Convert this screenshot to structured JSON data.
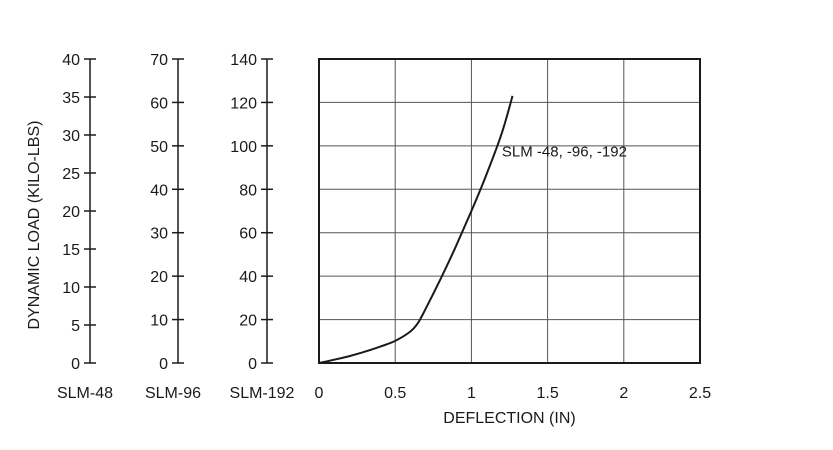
{
  "chart_data": {
    "type": "line",
    "xlabel": "DEFLECTION (IN)",
    "ylabel": "DYNAMIC LOAD (KILO-LBS)",
    "xlim": [
      0,
      2.5
    ],
    "xticks": [
      0,
      0.5,
      1,
      1.5,
      2,
      2.5
    ],
    "x_tick_labels": [
      "0",
      "0.5",
      "1",
      "1.5",
      "2",
      "2.5"
    ],
    "grid": true,
    "y_axes": [
      {
        "name": "SLM-48",
        "ylim": [
          0,
          40
        ],
        "ticks": [
          0,
          5,
          10,
          15,
          20,
          25,
          30,
          35,
          40
        ]
      },
      {
        "name": "SLM-96",
        "ylim": [
          0,
          70
        ],
        "ticks": [
          0,
          10,
          20,
          30,
          40,
          50,
          60,
          70
        ]
      },
      {
        "name": "SLM-192",
        "ylim": [
          0,
          140
        ],
        "ticks": [
          0,
          20,
          40,
          60,
          80,
          100,
          120,
          140
        ]
      }
    ],
    "series": [
      {
        "name": "SLM -48, -96, -192",
        "axis": "SLM-192",
        "x": [
          0,
          0.1,
          0.2,
          0.3,
          0.4,
          0.5,
          0.6,
          0.65,
          0.7,
          0.8,
          0.9,
          1.0,
          1.1,
          1.2,
          1.27
        ],
        "y": [
          0,
          1.5,
          3.2,
          5.2,
          7.5,
          10.2,
          14.5,
          18.5,
          25,
          39,
          54,
          70,
          87,
          106,
          123
        ]
      }
    ],
    "annotations": [
      {
        "text": "SLM -48, -96, -192",
        "x": 1.2,
        "y": 95
      }
    ]
  }
}
